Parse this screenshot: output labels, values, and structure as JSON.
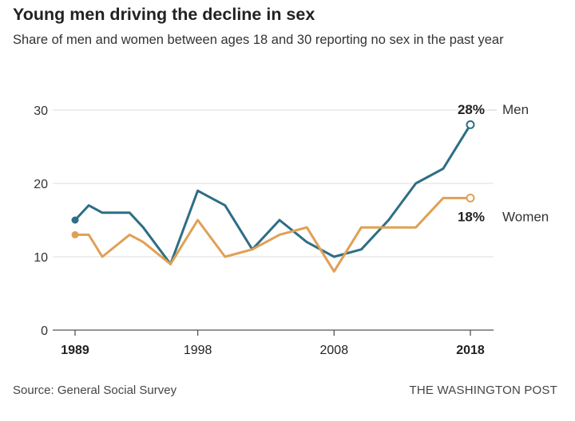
{
  "header": {
    "title": "Young men driving the decline in sex",
    "subtitle": "Share of men and women between ages 18 and 30 reporting no sex in the past year"
  },
  "footer": {
    "source": "Source: General Social Survey",
    "credit": "THE WASHINGTON POST"
  },
  "colors": {
    "men": "#2e6e85",
    "women": "#e0a054",
    "grid": "#dddddd",
    "axis": "#555555"
  },
  "chart_data": {
    "type": "line",
    "title": "Young men driving the decline in sex",
    "subtitle": "Share of men and women between ages 18 and 30 reporting no sex in the past year",
    "xlabel": "",
    "ylabel": "",
    "xlim": [
      1989,
      2018
    ],
    "ylim": [
      0,
      30
    ],
    "grid": true,
    "x_ticks": [
      {
        "value": 1989,
        "label": "1989",
        "bold": true
      },
      {
        "value": 1998,
        "label": "1998",
        "bold": false
      },
      {
        "value": 2008,
        "label": "2008",
        "bold": false
      },
      {
        "value": 2018,
        "label": "2018",
        "bold": true
      }
    ],
    "y_ticks": [
      {
        "value": 0,
        "label": "0"
      },
      {
        "value": 10,
        "label": "10"
      },
      {
        "value": 20,
        "label": "20"
      },
      {
        "value": 30,
        "label": "30"
      }
    ],
    "series": [
      {
        "name": "Men",
        "color": "#2e6e85",
        "end_label": "28%",
        "x": [
          1989,
          1990,
          1991,
          1993,
          1994,
          1996,
          1998,
          2000,
          2002,
          2004,
          2006,
          2008,
          2010,
          2012,
          2014,
          2016,
          2018
        ],
        "y": [
          15,
          17,
          16,
          16,
          14,
          9,
          19,
          17,
          11,
          15,
          12,
          10,
          11,
          15,
          20,
          22,
          28
        ]
      },
      {
        "name": "Women",
        "color": "#e0a054",
        "end_label": "18%",
        "x": [
          1989,
          1990,
          1991,
          1993,
          1994,
          1996,
          1998,
          2000,
          2002,
          2004,
          2006,
          2008,
          2010,
          2012,
          2014,
          2016,
          2018
        ],
        "y": [
          13,
          13,
          10,
          13,
          12,
          9,
          15,
          10,
          11,
          13,
          14,
          8,
          14,
          14,
          14,
          18,
          18
        ]
      }
    ]
  }
}
